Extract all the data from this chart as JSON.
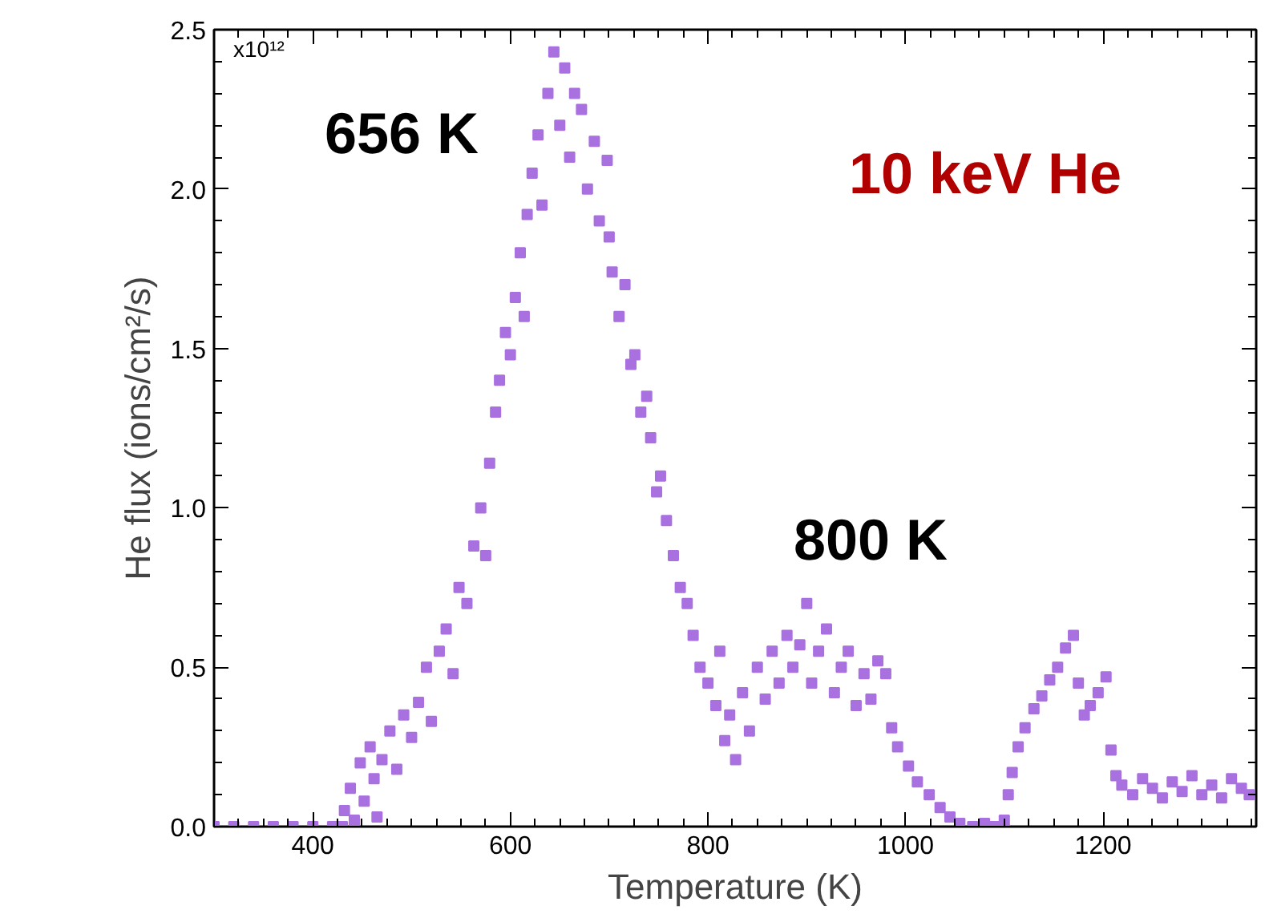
{
  "chart_data": {
    "type": "scatter",
    "xlabel": "Temperature (K)",
    "ylabel": "He flux (ions/cm²/s)",
    "annotations": [
      "656 K",
      "800 K",
      "10 keV He",
      "x10¹²"
    ],
    "marker": "square",
    "grid": false,
    "xlim": [
      300,
      1355
    ],
    "ylim": [
      0,
      2.5
    ],
    "xticks": [
      400,
      600,
      800,
      1000,
      1200
    ],
    "yticks": [
      {
        "value": 0,
        "label": "0.0"
      },
      0.5,
      {
        "value": 1,
        "label": "1.0"
      },
      1.5,
      {
        "value": 2,
        "label": "2.0"
      },
      2.5
    ],
    "series": [
      {
        "color": "#a970e0",
        "x": [
          300,
          320,
          340,
          360,
          380,
          400,
          420,
          430,
          432,
          438,
          442,
          448,
          452,
          458,
          462,
          465,
          470,
          478,
          485,
          492,
          500,
          507,
          515,
          520,
          528,
          535,
          542,
          548,
          556,
          563,
          570,
          575,
          579,
          585,
          589,
          595,
          600,
          605,
          610,
          614,
          617,
          622,
          628,
          632,
          638,
          644,
          650,
          655,
          660,
          665,
          672,
          678,
          685,
          690,
          698,
          700,
          703,
          710,
          716,
          722,
          726,
          732,
          738,
          742,
          748,
          752,
          758,
          765,
          772,
          779,
          785,
          792,
          800,
          808,
          812,
          817,
          822,
          828,
          835,
          842,
          850,
          858,
          865,
          872,
          880,
          886,
          893,
          900,
          905,
          912,
          920,
          928,
          935,
          942,
          950,
          958,
          965,
          972,
          980,
          986,
          992,
          1003,
          1012,
          1024,
          1035,
          1045,
          1055,
          1068,
          1080,
          1090,
          1100,
          1104,
          1108,
          1114,
          1121,
          1130,
          1138,
          1146,
          1154,
          1162,
          1170,
          1175,
          1181,
          1187,
          1195,
          1203,
          1208,
          1213,
          1219,
          1230,
          1240,
          1250,
          1260,
          1270,
          1280,
          1290,
          1300,
          1310,
          1320,
          1330,
          1340,
          1348
        ],
        "values": [
          0,
          0,
          0,
          0,
          0,
          0,
          0,
          0,
          0.05,
          0.12,
          0.02,
          0.2,
          0.08,
          0.25,
          0.15,
          0.03,
          0.21,
          0.3,
          0.18,
          0.35,
          0.28,
          0.39,
          0.5,
          0.33,
          0.55,
          0.62,
          0.48,
          0.75,
          0.7,
          0.88,
          1.0,
          0.85,
          1.14,
          1.3,
          1.4,
          1.55,
          1.48,
          1.66,
          1.8,
          1.6,
          1.92,
          2.05,
          2.17,
          1.95,
          2.3,
          2.43,
          2.2,
          2.38,
          2.1,
          2.3,
          2.25,
          2.0,
          2.15,
          1.9,
          2.09,
          1.85,
          1.74,
          1.6,
          1.7,
          1.45,
          1.48,
          1.3,
          1.35,
          1.22,
          1.05,
          1.1,
          0.96,
          0.85,
          0.75,
          0.7,
          0.6,
          0.5,
          0.45,
          0.38,
          0.55,
          0.27,
          0.35,
          0.21,
          0.42,
          0.3,
          0.5,
          0.4,
          0.55,
          0.45,
          0.6,
          0.5,
          0.57,
          0.7,
          0.45,
          0.55,
          0.62,
          0.42,
          0.5,
          0.55,
          0.38,
          0.48,
          0.4,
          0.52,
          0.48,
          0.31,
          0.25,
          0.19,
          0.14,
          0.1,
          0.06,
          0.03,
          0.01,
          0,
          0.01,
          0,
          0.02,
          0.1,
          0.17,
          0.25,
          0.31,
          0.37,
          0.41,
          0.46,
          0.5,
          0.56,
          0.6,
          0.45,
          0.35,
          0.38,
          0.42,
          0.47,
          0.24,
          0.16,
          0.13,
          0.1,
          0.15,
          0.12,
          0.09,
          0.14,
          0.11,
          0.16,
          0.1,
          0.13,
          0.09,
          0.15,
          0.12,
          0.1
        ]
      }
    ]
  }
}
